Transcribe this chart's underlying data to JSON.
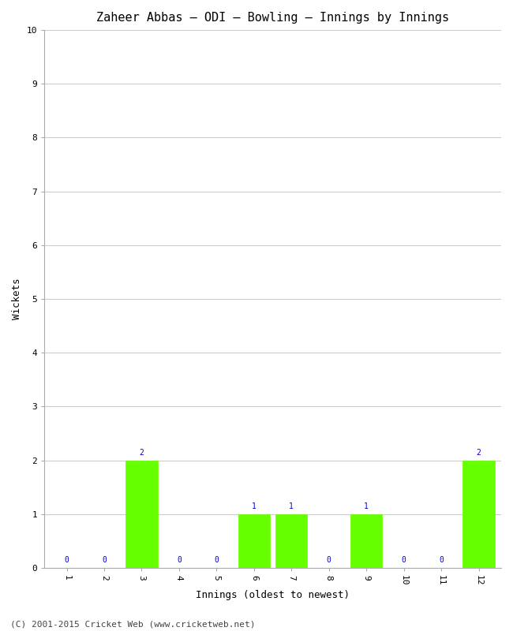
{
  "title": "Zaheer Abbas – ODI – Bowling – Innings by Innings",
  "xlabel": "Innings (oldest to newest)",
  "ylabel": "Wickets",
  "categories": [
    "1",
    "2",
    "3",
    "4",
    "5",
    "6",
    "7",
    "8",
    "9",
    "10",
    "11",
    "12"
  ],
  "values": [
    0,
    0,
    2,
    0,
    0,
    1,
    1,
    0,
    1,
    0,
    0,
    2
  ],
  "bar_color": "#66ff00",
  "bar_edge_color": "#66ff00",
  "annotation_color": "#0000cc",
  "ylim": [
    0,
    10
  ],
  "yticks": [
    0,
    1,
    2,
    3,
    4,
    5,
    6,
    7,
    8,
    9,
    10
  ],
  "grid_color": "#cccccc",
  "background_color": "#ffffff",
  "plot_bg_color": "#ffffff",
  "title_fontsize": 11,
  "axis_label_fontsize": 9,
  "tick_fontsize": 8,
  "annotation_fontsize": 7,
  "footer": "(C) 2001-2015 Cricket Web (www.cricketweb.net)",
  "footer_fontsize": 8,
  "footer_color": "#444444"
}
